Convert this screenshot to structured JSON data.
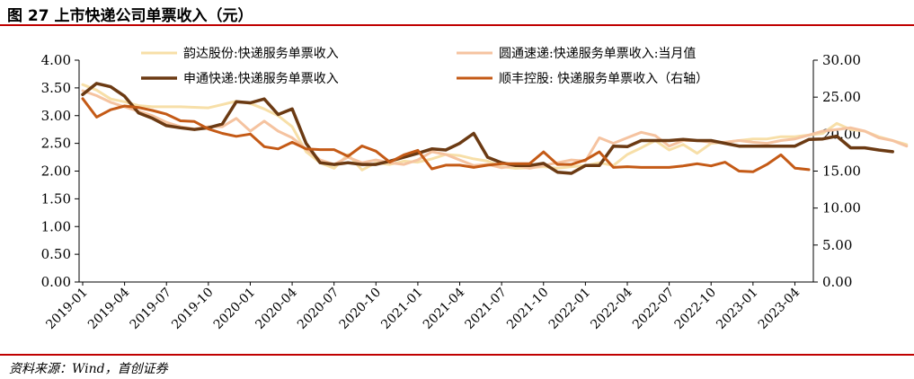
{
  "header": {
    "title": "图 27 上市快递公司单票收入（元）"
  },
  "footer": {
    "source": "资料来源：Wind，首创证券"
  },
  "chart_data": {
    "type": "line",
    "title": "图 27 上市快递公司单票收入（元）",
    "xlabel": "",
    "ylabel": "",
    "ylim": [
      0,
      4
    ],
    "y2lim": [
      0,
      30
    ],
    "yticks": [
      "0.00",
      "0.50",
      "1.00",
      "1.50",
      "2.00",
      "2.50",
      "3.00",
      "3.50",
      "4.00"
    ],
    "y2ticks": [
      "0.00",
      "5.00",
      "10.00",
      "15.00",
      "20.00",
      "25.00",
      "30.00"
    ],
    "xticks": [
      "2019-01",
      "2019-04",
      "2019-07",
      "2019-10",
      "2020-01",
      "2020-04",
      "2020-07",
      "2020-10",
      "2021-01",
      "2021-04",
      "2021-07",
      "2021-10",
      "2022-01",
      "2022-04",
      "2022-07",
      "2022-10",
      "2023-01",
      "2023-04"
    ],
    "legend": [
      "韵达股份:快递服务单票收入",
      "圆通速递:快递服务单票收入:当月值",
      "申通快递:快递服务单票收入",
      "顺丰控股: 快递服务单票收入（右轴）"
    ],
    "series": [
      {
        "name": "韵达股份:快递服务单票收入",
        "axis": "left",
        "color": "#f7dfa8",
        "values": [
          3.56,
          3.46,
          3.3,
          3.25,
          3.18,
          3.16,
          3.16,
          3.16,
          3.15,
          3.14,
          3.2,
          3.26,
          3.22,
          3.12,
          3.0,
          2.8,
          2.35,
          2.15,
          2.05,
          2.3,
          2.02,
          2.15,
          2.12,
          2.18,
          2.16,
          2.22,
          2.3,
          2.28,
          2.22,
          2.18,
          2.08,
          2.05,
          2.06,
          2.08,
          2.05,
          2.08,
          2.1,
          2.15,
          2.1,
          2.3,
          2.42,
          2.55,
          2.38,
          2.48,
          2.32,
          2.5,
          2.52,
          2.55,
          2.58,
          2.58,
          2.62,
          2.62,
          2.65,
          2.68,
          2.86,
          2.75,
          2.72,
          2.62,
          2.55,
          2.48
        ]
      },
      {
        "name": "圆通速递:快递服务单票收入:当月值",
        "axis": "left",
        "color": "#f5c3a0",
        "values": [
          3.45,
          3.36,
          3.24,
          3.16,
          3.08,
          3.0,
          2.88,
          2.8,
          2.76,
          2.8,
          2.8,
          2.95,
          2.72,
          2.9,
          2.72,
          2.6,
          2.4,
          2.2,
          2.12,
          2.25,
          2.15,
          2.2,
          2.15,
          2.12,
          2.2,
          2.35,
          2.3,
          2.2,
          2.1,
          2.12,
          2.06,
          2.1,
          2.05,
          2.1,
          2.15,
          2.2,
          2.18,
          2.6,
          2.5,
          2.6,
          2.7,
          2.64,
          2.45,
          2.55,
          2.55,
          2.52,
          2.52,
          2.55,
          2.52,
          2.5,
          2.55,
          2.58,
          2.65,
          2.72,
          2.75,
          2.78,
          2.72,
          2.6,
          2.55,
          2.45
        ]
      },
      {
        "name": "申通快递:快递服务单票收入",
        "axis": "left",
        "color": "#6b3a13",
        "values": [
          3.38,
          3.58,
          3.52,
          3.35,
          3.05,
          2.95,
          2.82,
          2.78,
          2.75,
          2.78,
          2.85,
          3.25,
          3.23,
          3.3,
          3.02,
          3.12,
          2.5,
          2.15,
          2.12,
          2.15,
          2.12,
          2.12,
          2.18,
          2.25,
          2.32,
          2.4,
          2.38,
          2.5,
          2.68,
          2.25,
          2.15,
          2.1,
          2.1,
          2.14,
          1.98,
          1.96,
          2.1,
          2.1,
          2.45,
          2.44,
          2.55,
          2.55,
          2.55,
          2.57,
          2.55,
          2.55,
          2.5,
          2.45,
          2.45,
          2.45,
          2.45,
          2.45,
          2.57,
          2.58,
          2.63,
          2.42,
          2.42,
          2.38,
          2.35
        ]
      },
      {
        "name": "顺丰控股: 快递服务单票收入（右轴）",
        "axis": "right",
        "color": "#c45a16",
        "values": [
          24.8,
          22.3,
          23.3,
          23.8,
          23.6,
          23.2,
          22.7,
          21.8,
          21.7,
          20.7,
          20.1,
          19.7,
          20.0,
          18.3,
          18.0,
          18.9,
          18.0,
          17.9,
          17.9,
          17.0,
          18.4,
          17.7,
          16.2,
          17.2,
          17.8,
          15.3,
          15.8,
          15.8,
          15.5,
          15.8,
          16.0,
          16.0,
          16.0,
          17.6,
          15.9,
          15.9,
          16.5,
          17.6,
          15.5,
          15.6,
          15.5,
          15.5,
          15.5,
          15.7,
          16.0,
          15.7,
          16.2,
          15.0,
          14.9,
          15.9,
          17.2,
          15.4,
          15.2
        ]
      }
    ]
  }
}
